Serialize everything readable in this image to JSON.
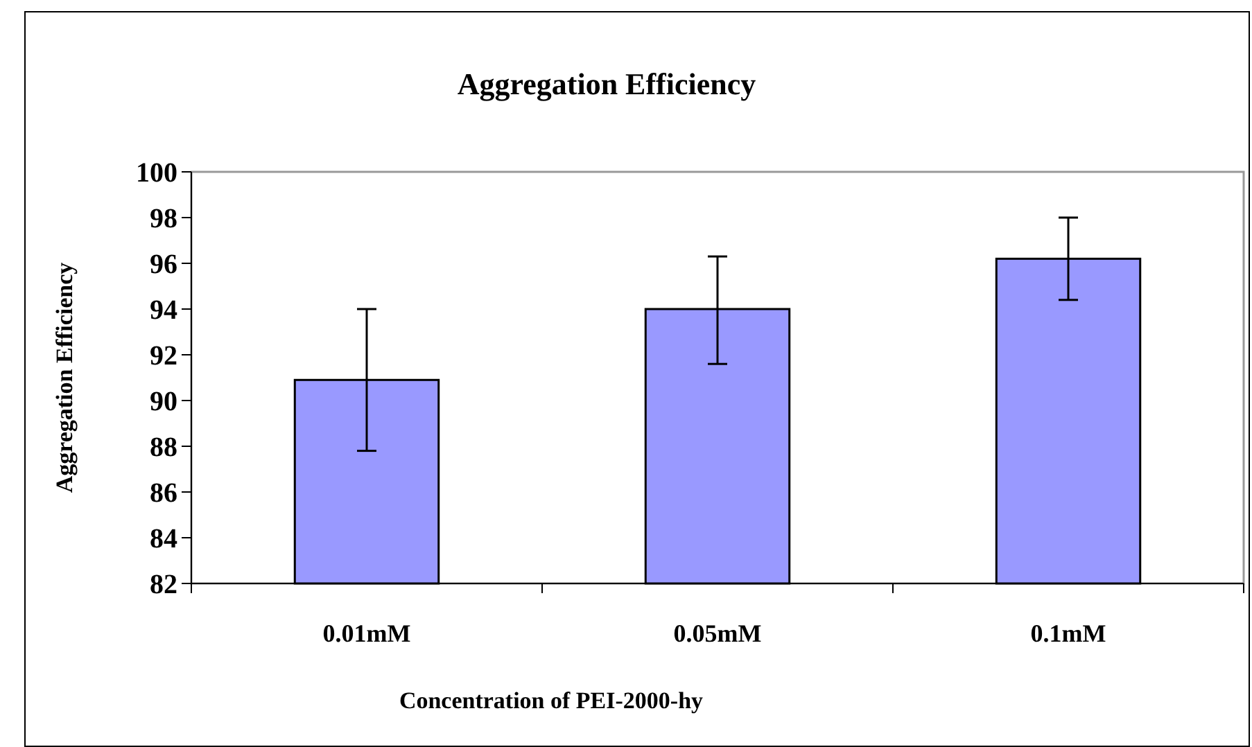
{
  "chart_data": {
    "type": "bar",
    "title": "Aggregation Efficiency",
    "xlabel": "Concentration of PEI-2000-hy",
    "ylabel": "Aggregation Efficiency",
    "categories": [
      "0.01mM",
      "0.05mM",
      "0.1mM"
    ],
    "values": [
      90.9,
      94.0,
      96.2
    ],
    "errors": [
      [
        87.8,
        94.0
      ],
      [
        91.6,
        96.3
      ],
      [
        94.4,
        98.0
      ]
    ],
    "color": "#9999ff",
    "ylim": [
      82,
      100
    ],
    "yticks": [
      82,
      84,
      86,
      88,
      90,
      92,
      94,
      96,
      98,
      100
    ],
    "grid": false
  }
}
